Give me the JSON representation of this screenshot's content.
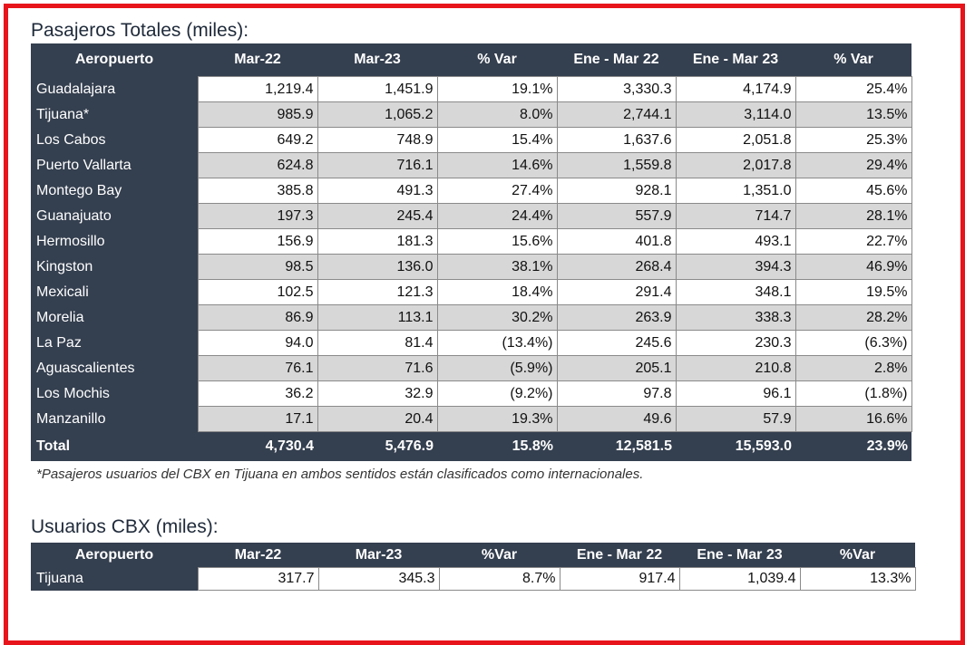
{
  "table1": {
    "title": "Pasajeros Totales (miles):",
    "headers": [
      "Aeropuerto",
      "Mar-22",
      "Mar-23",
      "% Var",
      "Ene - Mar 22",
      "Ene - Mar 23",
      "% Var"
    ],
    "rows": [
      [
        "Guadalajara",
        "1,219.4",
        "1,451.9",
        "19.1%",
        "3,330.3",
        "4,174.9",
        "25.4%"
      ],
      [
        "Tijuana*",
        "985.9",
        "1,065.2",
        "8.0%",
        "2,744.1",
        "3,114.0",
        "13.5%"
      ],
      [
        "Los Cabos",
        "649.2",
        "748.9",
        "15.4%",
        "1,637.6",
        "2,051.8",
        "25.3%"
      ],
      [
        "Puerto Vallarta",
        "624.8",
        "716.1",
        "14.6%",
        "1,559.8",
        "2,017.8",
        "29.4%"
      ],
      [
        "Montego Bay",
        "385.8",
        "491.3",
        "27.4%",
        "928.1",
        "1,351.0",
        "45.6%"
      ],
      [
        "Guanajuato",
        "197.3",
        "245.4",
        "24.4%",
        "557.9",
        "714.7",
        "28.1%"
      ],
      [
        "Hermosillo",
        "156.9",
        "181.3",
        "15.6%",
        "401.8",
        "493.1",
        "22.7%"
      ],
      [
        "Kingston",
        "98.5",
        "136.0",
        "38.1%",
        "268.4",
        "394.3",
        "46.9%"
      ],
      [
        "Mexicali",
        "102.5",
        "121.3",
        "18.4%",
        "291.4",
        "348.1",
        "19.5%"
      ],
      [
        "Morelia",
        "86.9",
        "113.1",
        "30.2%",
        "263.9",
        "338.3",
        "28.2%"
      ],
      [
        "La Paz",
        "94.0",
        "81.4",
        "(13.4%)",
        "245.6",
        "230.3",
        "(6.3%)"
      ],
      [
        "Aguascalientes",
        "76.1",
        "71.6",
        "(5.9%)",
        "205.1",
        "210.8",
        "2.8%"
      ],
      [
        "Los Mochis",
        "36.2",
        "32.9",
        "(9.2%)",
        "97.8",
        "96.1",
        "(1.8%)"
      ],
      [
        "Manzanillo",
        "17.1",
        "20.4",
        "19.3%",
        "49.6",
        "57.9",
        "16.6%"
      ]
    ],
    "total": [
      "Total",
      "4,730.4",
      "5,476.9",
      "15.8%",
      "12,581.5",
      "15,593.0",
      "23.9%"
    ],
    "footnote": "*Pasajeros usuarios del CBX en Tijuana en ambos sentidos están clasificados como internacionales."
  },
  "table2": {
    "title": "Usuarios CBX (miles):",
    "headers": [
      "Aeropuerto",
      "Mar-22",
      "Mar-23",
      "%Var",
      "Ene - Mar 22",
      "Ene - Mar 23",
      "%Var"
    ],
    "rows": [
      [
        "Tijuana",
        "317.7",
        "345.3",
        "8.7%",
        "917.4",
        "1,039.4",
        "13.3%"
      ]
    ]
  },
  "colors": {
    "header_bg": "#343f4f",
    "border": "#e8141b",
    "stripe": "#d7d7d7"
  }
}
